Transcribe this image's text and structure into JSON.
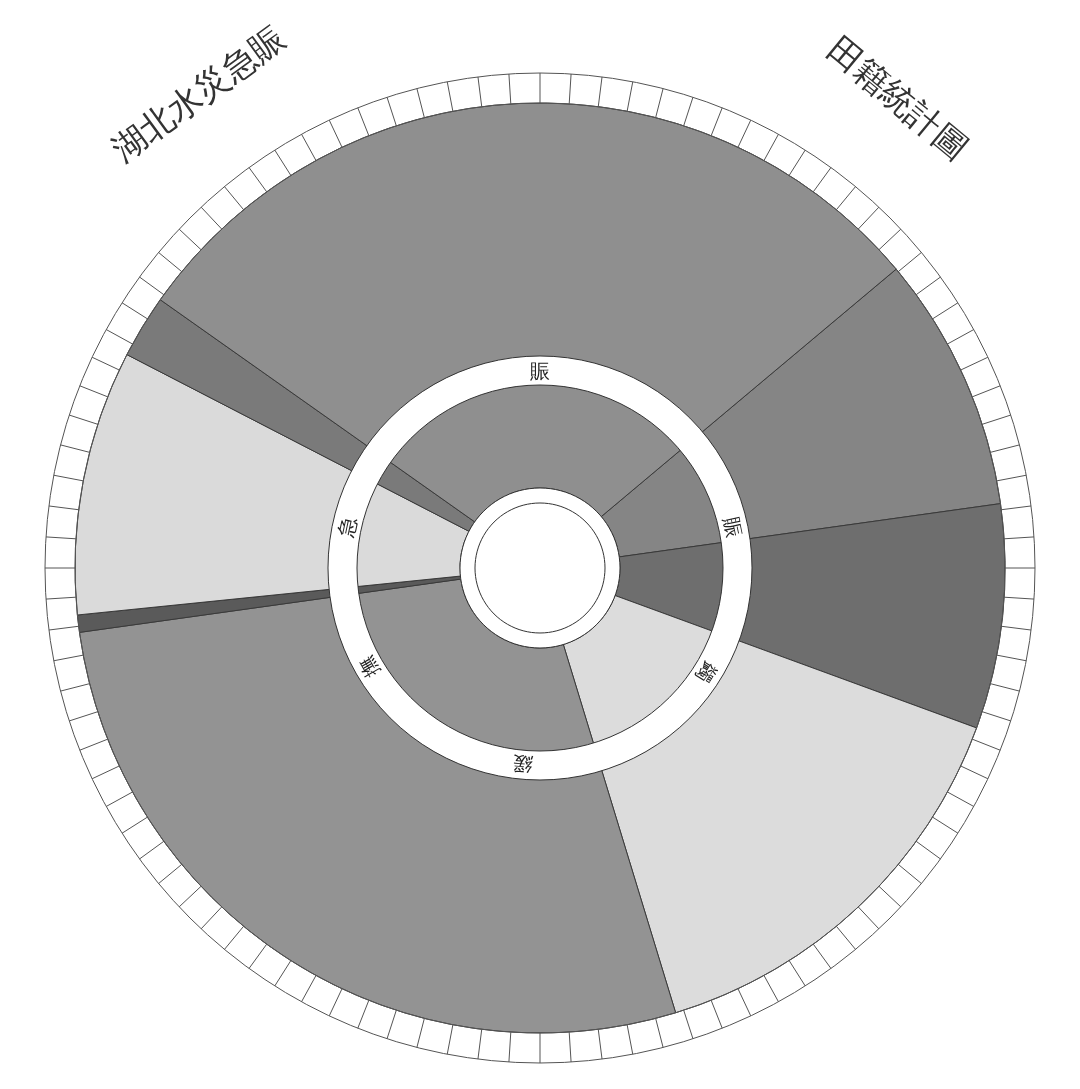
{
  "chart_data": {
    "type": "donut",
    "title": "湖北水災急賑",
    "subtitle": "田籍統計圖",
    "categories": [
      null,
      null,
      null,
      null,
      null,
      null,
      null,
      null
    ],
    "values": [
      8.9,
      7.8,
      14.7,
      27.5,
      0.6,
      9.2,
      2.2,
      29.1
    ],
    "colors": [
      "#858585",
      "#6e6e6e",
      "#dcdcdc",
      "#939393",
      "#5a5a5a",
      "#dadada",
      "#7a7a7a",
      "#8f8f8f"
    ],
    "annotations": [
      "賑",
      "急",
      "賑",
      "蠲",
      "緩",
      "撫"
    ]
  }
}
